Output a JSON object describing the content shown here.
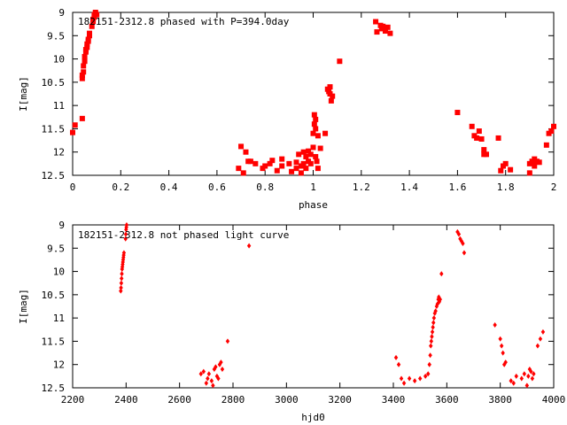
{
  "chart_data": [
    {
      "type": "scatter",
      "title": "182151-2312.8 phased with P=394.0day",
      "xlabel": "phase",
      "ylabel": "I[mag]",
      "xlim": [
        0,
        2
      ],
      "ylim": [
        12.5,
        9
      ],
      "y_inverted": true,
      "x_ticks": [
        0,
        0.2,
        0.4,
        0.6,
        0.8,
        1,
        1.2,
        1.4,
        1.6,
        1.8,
        2
      ],
      "x_tick_labels": [
        "0",
        "0.2",
        "0.4",
        "0.6",
        "0.8",
        "1",
        "1.2",
        "1.4",
        "1.6",
        "1.8",
        "2"
      ],
      "y_ticks": [
        9,
        9.5,
        10,
        10.5,
        11,
        11.5,
        12,
        12.5
      ],
      "y_tick_labels": [
        "9",
        "9.5",
        "10",
        "10.5",
        "11",
        "11.5",
        "12",
        "12.5"
      ],
      "grid": false,
      "marker": "filled-square",
      "color": "#ff0000",
      "x": [
        0.0,
        0.01,
        0.04,
        0.04,
        0.04,
        0.045,
        0.045,
        0.05,
        0.05,
        0.055,
        0.055,
        0.06,
        0.06,
        0.065,
        0.065,
        0.07,
        0.07,
        0.08,
        0.085,
        0.085,
        0.09,
        0.09,
        0.095,
        0.095,
        0.1,
        0.69,
        0.7,
        0.71,
        0.72,
        0.73,
        0.74,
        0.76,
        0.79,
        0.8,
        0.82,
        0.83,
        0.85,
        0.87,
        0.87,
        0.9,
        0.91,
        0.93,
        0.93,
        0.94,
        0.95,
        0.95,
        0.96,
        0.96,
        0.97,
        0.97,
        0.98,
        0.98,
        0.99,
        0.99,
        1.0,
        1.0,
        1.005,
        1.005,
        1.01,
        1.01,
        1.01,
        1.015,
        1.02,
        1.02,
        1.03,
        1.05,
        1.06,
        1.065,
        1.07,
        1.07,
        1.075,
        1.08,
        1.11,
        1.26,
        1.265,
        1.28,
        1.285,
        1.29,
        1.3,
        1.31,
        1.32,
        1.6,
        1.66,
        1.67,
        1.68,
        1.69,
        1.7,
        1.71,
        1.71,
        1.72,
        1.77,
        1.78,
        1.79,
        1.8,
        1.82,
        1.9,
        1.9,
        1.91,
        1.92,
        1.92,
        1.93,
        1.94,
        1.97,
        1.98,
        1.99,
        2.0
      ],
      "y": [
        11.58,
        11.42,
        11.28,
        10.42,
        10.35,
        10.28,
        10.15,
        10.05,
        9.95,
        9.85,
        9.8,
        9.75,
        9.68,
        9.62,
        9.58,
        9.5,
        9.45,
        9.3,
        9.2,
        9.15,
        9.1,
        9.05,
        9.02,
        9.0,
        9.05,
        12.35,
        11.88,
        12.45,
        12.0,
        12.2,
        12.2,
        12.25,
        12.35,
        12.3,
        12.25,
        12.18,
        12.4,
        12.15,
        12.3,
        12.25,
        12.42,
        12.35,
        12.22,
        12.05,
        12.45,
        12.3,
        12.0,
        12.25,
        12.1,
        12.35,
        11.98,
        12.2,
        12.05,
        12.25,
        11.9,
        11.6,
        11.4,
        11.2,
        11.5,
        11.3,
        12.1,
        12.2,
        11.65,
        12.35,
        11.92,
        11.6,
        10.65,
        10.7,
        10.6,
        10.75,
        10.9,
        10.8,
        10.05,
        9.2,
        9.42,
        9.28,
        9.35,
        9.3,
        9.4,
        9.32,
        9.45,
        11.15,
        11.45,
        11.65,
        11.7,
        11.55,
        11.72,
        12.05,
        11.95,
        12.05,
        11.7,
        12.4,
        12.3,
        12.25,
        12.38,
        12.25,
        12.45,
        12.2,
        12.15,
        12.3,
        12.2,
        12.22,
        11.85,
        11.6,
        11.55,
        11.45
      ]
    },
    {
      "type": "scatter",
      "title": "182151-2312.8 not phased light curve",
      "xlabel": "hjd0",
      "ylabel": "I[mag]",
      "xlim": [
        2200,
        4000
      ],
      "ylim": [
        12.5,
        9
      ],
      "y_inverted": true,
      "x_ticks": [
        2200,
        2400,
        2600,
        2800,
        3000,
        3200,
        3400,
        3600,
        3800,
        4000
      ],
      "x_tick_labels": [
        "2200",
        "2400",
        "2600",
        "2800",
        "3000",
        "3200",
        "3400",
        "3600",
        "3800",
        "4000"
      ],
      "y_ticks": [
        9,
        9.5,
        10,
        10.5,
        11,
        11.5,
        12,
        12.5
      ],
      "y_tick_labels": [
        "9",
        "9.5",
        "10",
        "10.5",
        "11",
        "11.5",
        "12",
        "12.5"
      ],
      "grid": false,
      "marker": "filled-diamond",
      "color": "#ff0000",
      "x": [
        2380,
        2381,
        2382,
        2383,
        2384,
        2385,
        2386,
        2387,
        2388,
        2389,
        2390,
        2391,
        2392,
        2398,
        2399,
        2400,
        2401,
        2402,
        2680,
        2690,
        2700,
        2705,
        2710,
        2720,
        2725,
        2730,
        2735,
        2740,
        2745,
        2750,
        2755,
        2760,
        2780,
        2860,
        3410,
        3420,
        3430,
        3440,
        3460,
        3480,
        3500,
        3520,
        3530,
        3535,
        3538,
        3540,
        3542,
        3544,
        3546,
        3548,
        3550,
        3552,
        3555,
        3558,
        3562,
        3565,
        3568,
        3570,
        3572,
        3575,
        3580,
        3640,
        3645,
        3650,
        3655,
        3660,
        3665,
        3780,
        3800,
        3805,
        3810,
        3815,
        3820,
        3840,
        3850,
        3860,
        3880,
        3890,
        3900,
        3905,
        3910,
        3915,
        3920,
        3925,
        3940,
        3950,
        3960
      ],
      "y": [
        10.42,
        10.35,
        10.25,
        10.15,
        10.05,
        9.95,
        9.9,
        9.85,
        9.8,
        9.75,
        9.7,
        9.65,
        9.6,
        9.3,
        9.2,
        9.1,
        9.05,
        9.0,
        12.2,
        12.15,
        12.4,
        12.3,
        12.2,
        12.35,
        12.45,
        12.1,
        12.05,
        12.25,
        12.3,
        12.0,
        11.95,
        12.1,
        11.5,
        9.45,
        11.85,
        12.0,
        12.3,
        12.4,
        12.3,
        12.35,
        12.3,
        12.25,
        12.2,
        12.0,
        11.8,
        11.6,
        11.5,
        11.4,
        11.3,
        11.2,
        11.1,
        11.0,
        10.9,
        10.85,
        10.75,
        10.7,
        10.6,
        10.55,
        10.65,
        10.6,
        10.05,
        9.15,
        9.2,
        9.3,
        9.35,
        9.4,
        9.6,
        11.15,
        11.45,
        11.6,
        11.75,
        12.0,
        11.95,
        12.35,
        12.4,
        12.25,
        12.3,
        12.2,
        12.45,
        12.25,
        12.1,
        12.15,
        12.3,
        12.2,
        11.6,
        11.45,
        11.3
      ]
    }
  ]
}
